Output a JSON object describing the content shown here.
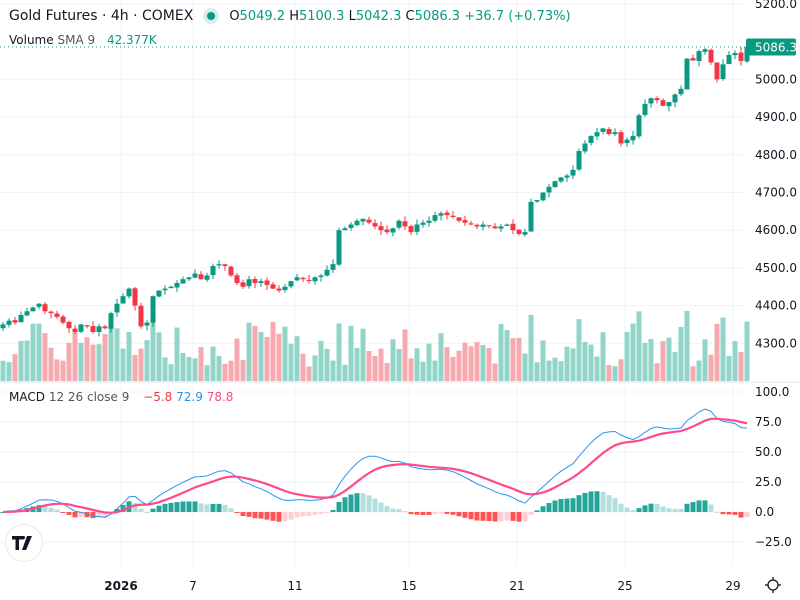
{
  "header": {
    "symbol_title": "Gold Futures · 4h · COMEX",
    "open_label": "O",
    "open": "5049.2",
    "high_label": "H",
    "high": "5100.3",
    "low_label": "L",
    "low": "5042.3",
    "close_label": "C",
    "close": "5086.3",
    "change": "+36.7 (+0.73%)",
    "volume_label": "Volume",
    "volume_sma": "SMA 9",
    "volume_value": "42.377K",
    "macd_label": "MACD",
    "macd_params": "12 26 close 9",
    "macd_hist": "−5.8",
    "macd_line": "72.9",
    "macd_signal": "78.8",
    "last_price_tag": "5086.3"
  },
  "colors": {
    "up": "#089981",
    "down": "#f23645",
    "vol_up": "#92d4c8",
    "vol_down": "#f7a9b0",
    "macd": "#2196f3",
    "signal": "#ff4a8a",
    "hist_up_strong": "#26a69a",
    "hist_up_weak": "#b2dfdb",
    "hist_down_strong": "#ff5252",
    "hist_down_weak": "#ffcdd2"
  },
  "chart_data": [
    {
      "type": "candlestick",
      "title": "Gold Futures · 4h · COMEX",
      "ylim": [
        4250,
        5200
      ],
      "y_ticks": [
        "5200.0",
        "5000.0",
        "4900.0",
        "4800.0",
        "4700.0",
        "4600.0",
        "4500.0",
        "4400.0",
        "4300.0"
      ],
      "y_tick_values": [
        5200,
        5000,
        4900,
        4800,
        4700,
        4600,
        4500,
        4400,
        4300
      ],
      "x_ticks": [
        "2026",
        "7",
        "11",
        "15",
        "21",
        "25",
        "29"
      ],
      "x_tick_index": [
        20,
        32,
        49,
        68,
        86,
        104,
        122
      ],
      "closes": [
        4350,
        4360,
        4355,
        4375,
        4385,
        4395,
        4405,
        4385,
        4380,
        4370,
        4355,
        4340,
        4330,
        4350,
        4345,
        4330,
        4345,
        4340,
        4380,
        4405,
        4425,
        4445,
        4400,
        4345,
        4355,
        4425,
        4440,
        4445,
        4450,
        4460,
        4470,
        4475,
        4485,
        4470,
        4480,
        4505,
        4510,
        4505,
        4480,
        4460,
        4450,
        4470,
        4460,
        4465,
        4455,
        4445,
        4440,
        4450,
        4465,
        4475,
        4470,
        4465,
        4475,
        4480,
        4495,
        4510,
        4600,
        4605,
        4615,
        4625,
        4630,
        4620,
        4610,
        4600,
        4595,
        4605,
        4625,
        4610,
        4595,
        4615,
        4620,
        4625,
        4640,
        4645,
        4640,
        4635,
        4625,
        4620,
        4615,
        4610,
        4615,
        4612,
        4605,
        4610,
        4615,
        4600,
        4590,
        4595,
        4675,
        4680,
        4700,
        4715,
        4730,
        4740,
        4745,
        4760,
        4810,
        4830,
        4850,
        4860,
        4870,
        4855,
        4860,
        4830,
        4840,
        4850,
        4905,
        4935,
        4950,
        4945,
        4930,
        4940,
        4960,
        4975,
        5055,
        5050,
        5075,
        5080,
        5045,
        5000,
        5040,
        5065,
        5070,
        5049,
        5086
      ],
      "volume_sma_value": "42.377K",
      "macd": {
        "hist": -5.8,
        "macd": 72.9,
        "signal": 78.8,
        "ylim": [
          -40,
          100
        ],
        "y_ticks": [
          "100.0",
          "75.0",
          "50.0",
          "25.0",
          "0.0",
          "−25.0"
        ],
        "y_tick_values": [
          100,
          75,
          50,
          25,
          0,
          -25
        ]
      }
    }
  ]
}
